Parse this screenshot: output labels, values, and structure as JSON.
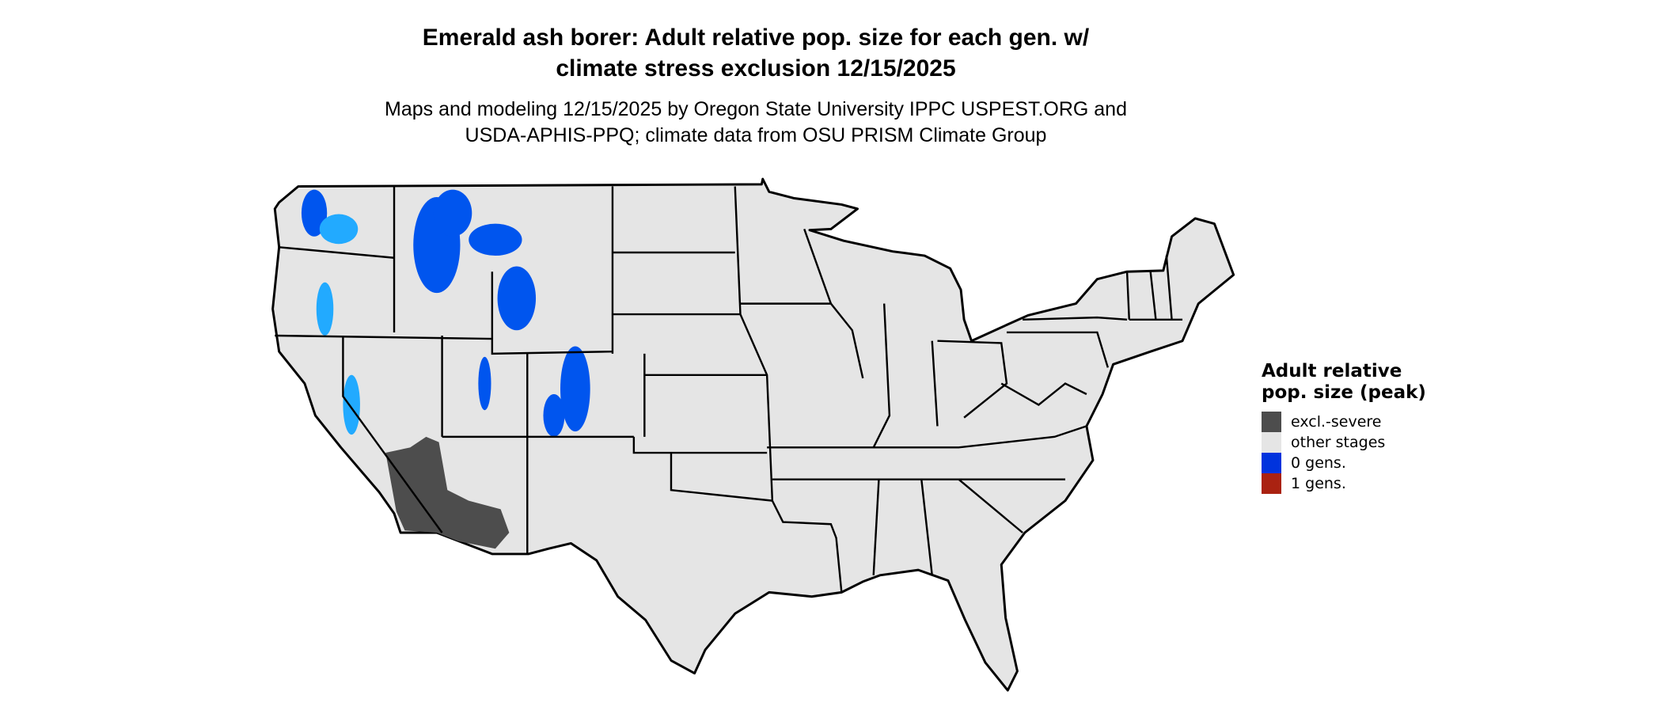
{
  "title_line1": "Emerald ash borer: Adult relative pop. size for each gen. w/",
  "title_line2": "climate stress exclusion 12/15/2025",
  "subtitle_line1": "Maps and modeling 12/15/2025 by Oregon State University IPPC USPEST.ORG and",
  "subtitle_line2": "USDA-APHIS-PPQ; climate data from OSU PRISM Climate Group",
  "legend": {
    "title": "Adult relative pop. size (peak)",
    "items": [
      {
        "label": "excl.-severe",
        "color": "#4d4d4d"
      },
      {
        "label": "other stages",
        "color": "#e5e5e5"
      },
      {
        "label": "0 gens.",
        "color": "#0033dd"
      },
      {
        "label": "1 gens.",
        "color": "#aa2211"
      }
    ]
  },
  "map": {
    "region": "Contiguous United States",
    "base_color": "#e5e5e5",
    "border_color": "#000000",
    "highlight_colors": {
      "zero_gens": "#0055ee",
      "zero_gens_light": "#22aaff",
      "excluded": "#4d4d4d"
    }
  }
}
